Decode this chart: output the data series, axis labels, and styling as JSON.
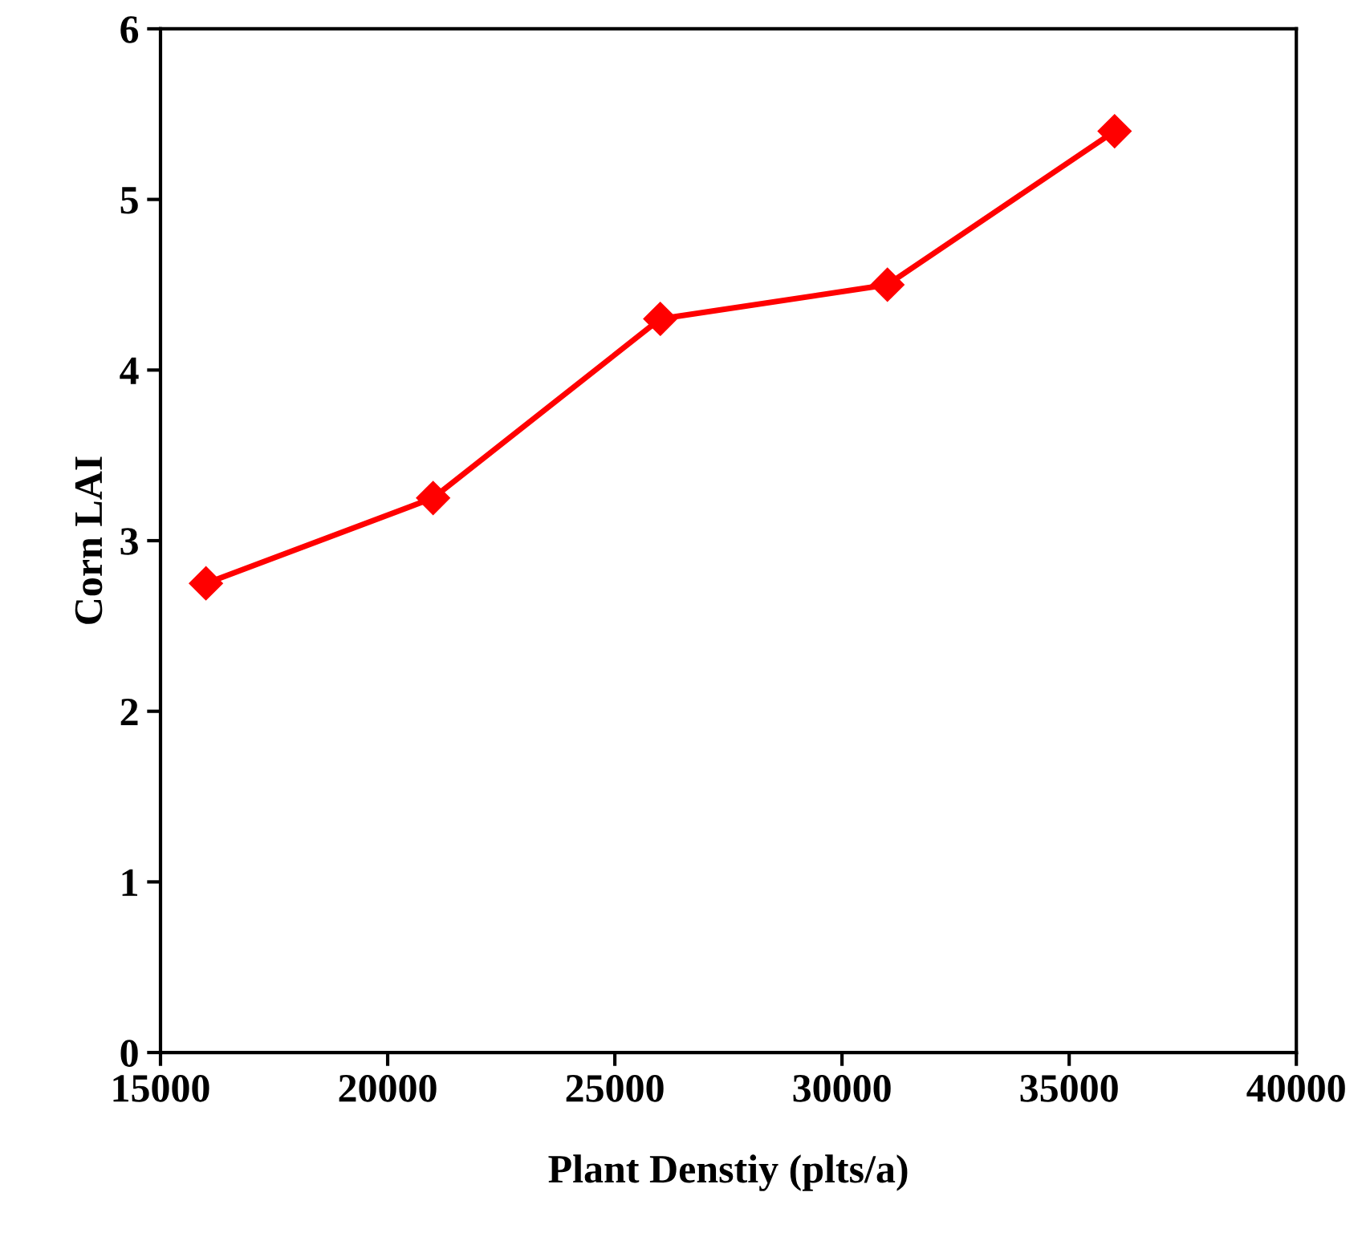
{
  "chart_data": {
    "type": "line",
    "xlabel": "Plant Denstiy (plts/a)",
    "ylabel": "Corn LAI",
    "x": [
      16000,
      21000,
      26000,
      31000,
      36000
    ],
    "series": [
      {
        "color": "#ff0000",
        "values": [
          2.75,
          3.25,
          4.3,
          4.5,
          5.4
        ]
      }
    ],
    "xlim": [
      15000,
      40000
    ],
    "xticks": [
      15000,
      20000,
      25000,
      30000,
      35000,
      40000
    ],
    "ylim": [
      0,
      6
    ],
    "yticks": [
      0,
      1,
      2,
      3,
      4,
      5,
      6
    ],
    "grid": false,
    "legend": false,
    "marker": "diamond",
    "line_style": "solid"
  }
}
